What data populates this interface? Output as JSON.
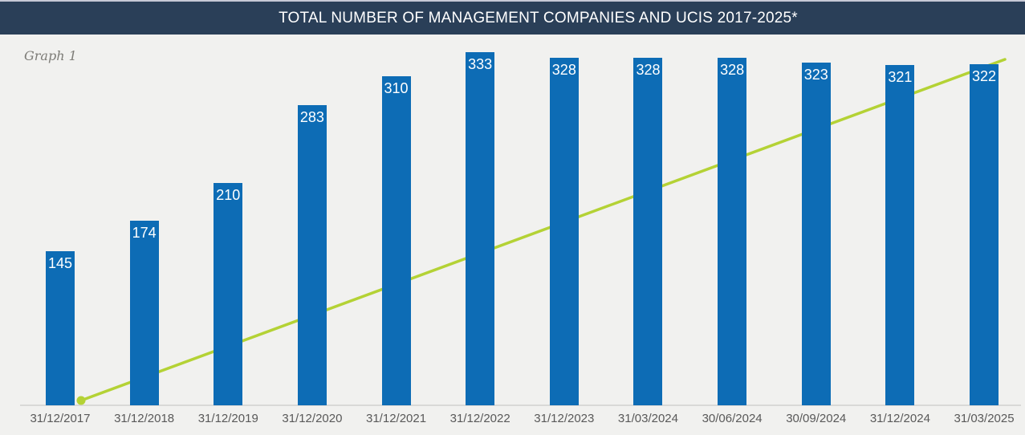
{
  "header": {
    "title": "TOTAL NUMBER OF MANAGEMENT COMPANIES AND UCIS 2017-2025*"
  },
  "graph_label": "Graph 1",
  "chart_data": {
    "type": "bar",
    "title": "TOTAL NUMBER OF MANAGEMENT COMPANIES AND UCIS 2017-2025*",
    "categories": [
      "31/12/2017",
      "31/12/2018",
      "31/12/2019",
      "31/12/2020",
      "31/12/2021",
      "31/12/2022",
      "31/12/2023",
      "31/03/2024",
      "30/06/2024",
      "30/09/2024",
      "31/12/2024",
      "31/03/2025"
    ],
    "values": [
      145,
      174,
      210,
      283,
      310,
      333,
      328,
      328,
      328,
      323,
      321,
      322
    ],
    "xlabel": "",
    "ylabel": "",
    "ylim": [
      0,
      340
    ],
    "grid": false,
    "legend": false,
    "data_labels": "values shown in white inside top of each bar",
    "annotations": [
      {
        "type": "trend-line",
        "description": "straight yellow-green line rising from a round marker at the baseline beside the 31/12/2017 bar up to the top of the 31/03/2025 bar, drawn behind the bars",
        "color": "#b4d235"
      }
    ],
    "colors": {
      "bar": "#0d6cb5",
      "trend_line": "#b4d235",
      "title_bar_bg": "#2a3f58",
      "title_text": "#ffffff",
      "plot_bg": "#f1f1ef",
      "axis_line": "#d9d9d7",
      "tick_label": "#595959",
      "graph_label_text": "#7d7c77"
    }
  }
}
